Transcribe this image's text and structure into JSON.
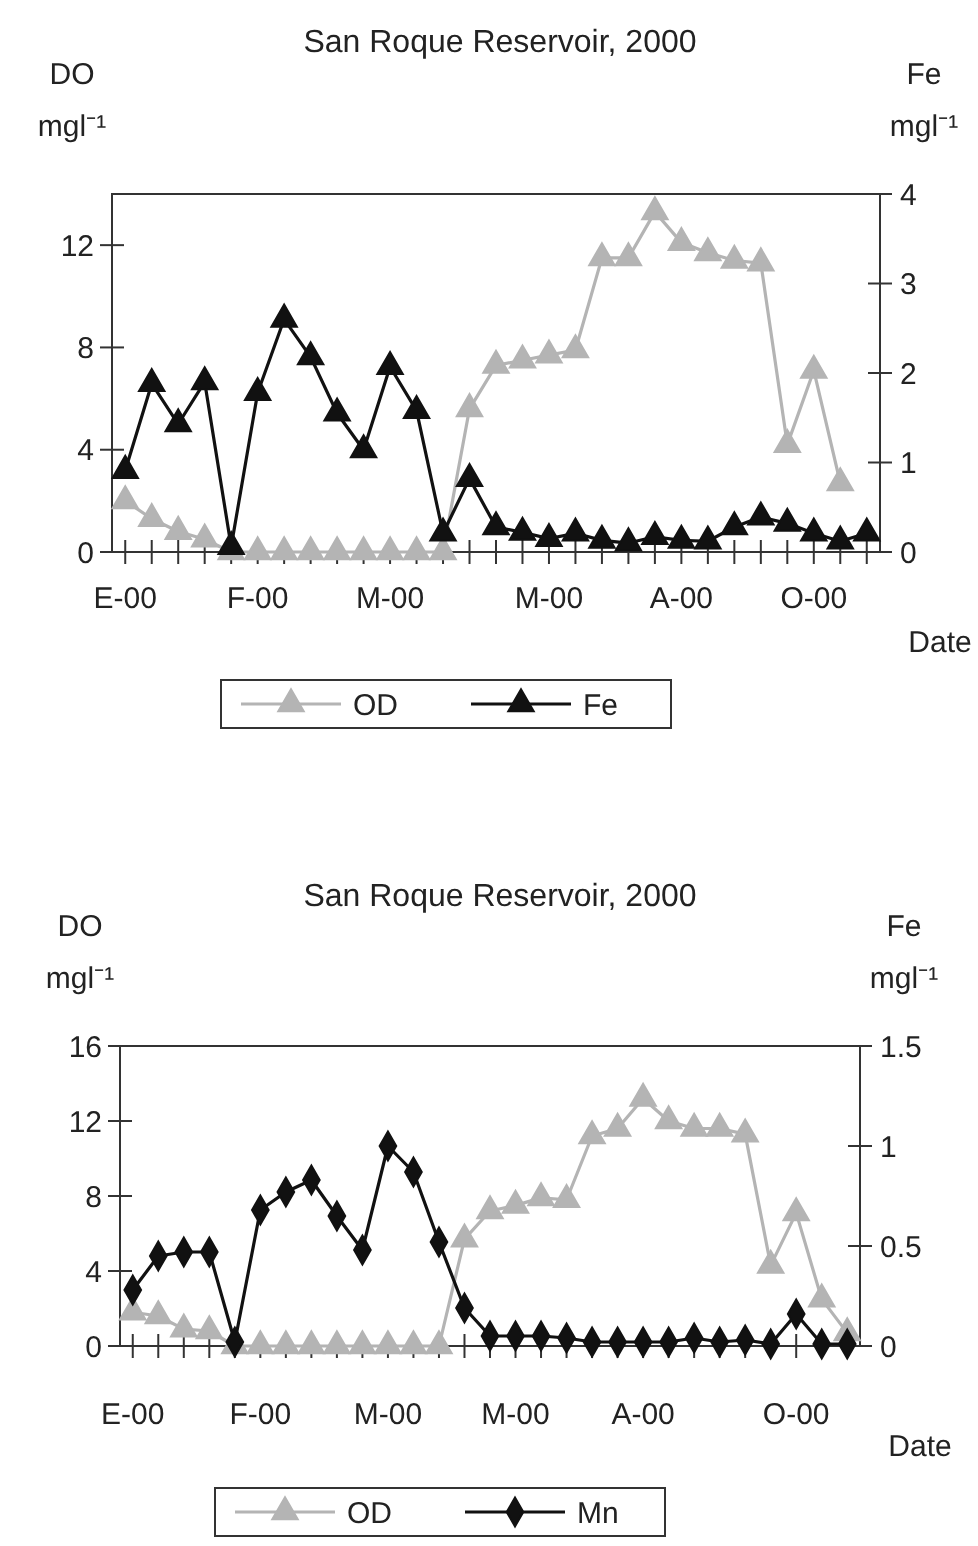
{
  "chart_data": [
    {
      "type": "line",
      "title": "San Roque Reservoir, 2000",
      "xlabel": "Date",
      "ylabel": "DO\nmgl⁻¹",
      "y2label": "Fe\nmgl⁻¹",
      "categories": [
        "E-00",
        null,
        null,
        null,
        null,
        "F-00",
        null,
        null,
        null,
        null,
        "M-00",
        null,
        null,
        null,
        null,
        null,
        "M-00",
        null,
        null,
        null,
        null,
        "A-00",
        null,
        null,
        null,
        null,
        "O-00",
        null,
        null
      ],
      "ylim": [
        0,
        14
      ],
      "yticks": [
        0,
        4,
        8,
        12
      ],
      "y2lim": [
        0,
        4
      ],
      "y2ticks": [
        0,
        1,
        2,
        3,
        4
      ],
      "grid": false,
      "legend": "bottom",
      "series": [
        {
          "name": "OD",
          "color": "#b4b4b4",
          "marker": "triangle",
          "values": [
            2.0,
            1.3,
            0.8,
            0.5,
            0,
            0,
            0,
            0,
            0,
            0,
            0,
            0,
            0,
            5.6,
            7.3,
            7.5,
            7.7,
            7.9,
            11.5,
            11.5,
            13.3,
            12.1,
            11.7,
            11.4,
            11.3,
            4.2,
            7.1,
            2.7,
            null
          ]
        },
        {
          "name": "Fe",
          "color": "#111111",
          "marker": "triangle",
          "axis": "y2",
          "values": [
            0.91,
            1.88,
            1.43,
            1.9,
            0.06,
            1.78,
            2.6,
            2.18,
            1.55,
            1.14,
            2.07,
            1.58,
            0.21,
            0.82,
            0.28,
            0.22,
            0.15,
            0.21,
            0.13,
            0.1,
            0.17,
            0.13,
            0.12,
            0.28,
            0.39,
            0.32,
            0.21,
            0.12,
            0.21
          ]
        }
      ]
    },
    {
      "type": "line",
      "title": "San Roque Reservoir, 2000",
      "xlabel": "Date",
      "ylabel": "DO\nmgl⁻¹",
      "y2label": "Fe\nmgl⁻¹",
      "categories": [
        "E-00",
        null,
        null,
        null,
        null,
        "F-00",
        null,
        null,
        null,
        null,
        "M-00",
        null,
        null,
        null,
        null,
        "M-00",
        null,
        null,
        null,
        null,
        "A-00",
        null,
        null,
        null,
        null,
        null,
        "O-00",
        null,
        null
      ],
      "ylim": [
        0,
        16
      ],
      "yticks": [
        0,
        4,
        8,
        12,
        16
      ],
      "y2lim": [
        0,
        1.5
      ],
      "y2ticks": [
        0,
        0.5,
        1,
        1.5
      ],
      "grid": false,
      "legend": "bottom",
      "series": [
        {
          "name": "OD",
          "color": "#b4b4b4",
          "marker": "triangle",
          "values": [
            1.8,
            1.6,
            0.9,
            0.8,
            0,
            0,
            0,
            0,
            0,
            0,
            0,
            0,
            0,
            5.7,
            7.2,
            7.5,
            7.9,
            7.8,
            11.2,
            11.6,
            13.2,
            12.0,
            11.6,
            11.6,
            11.3,
            4.3,
            7.1,
            2.5,
            0.7
          ]
        },
        {
          "name": "Mn",
          "color": "#111111",
          "marker": "diamond",
          "axis": "y2",
          "values": [
            0.28,
            0.45,
            0.47,
            0.47,
            0.02,
            0.68,
            0.77,
            0.83,
            0.65,
            0.48,
            1.0,
            0.87,
            0.52,
            0.19,
            0.05,
            0.05,
            0.05,
            0.04,
            0.02,
            0.02,
            0.02,
            0.02,
            0.04,
            0.02,
            0.03,
            0.01,
            0.16,
            0.01,
            0.01
          ]
        }
      ]
    }
  ]
}
